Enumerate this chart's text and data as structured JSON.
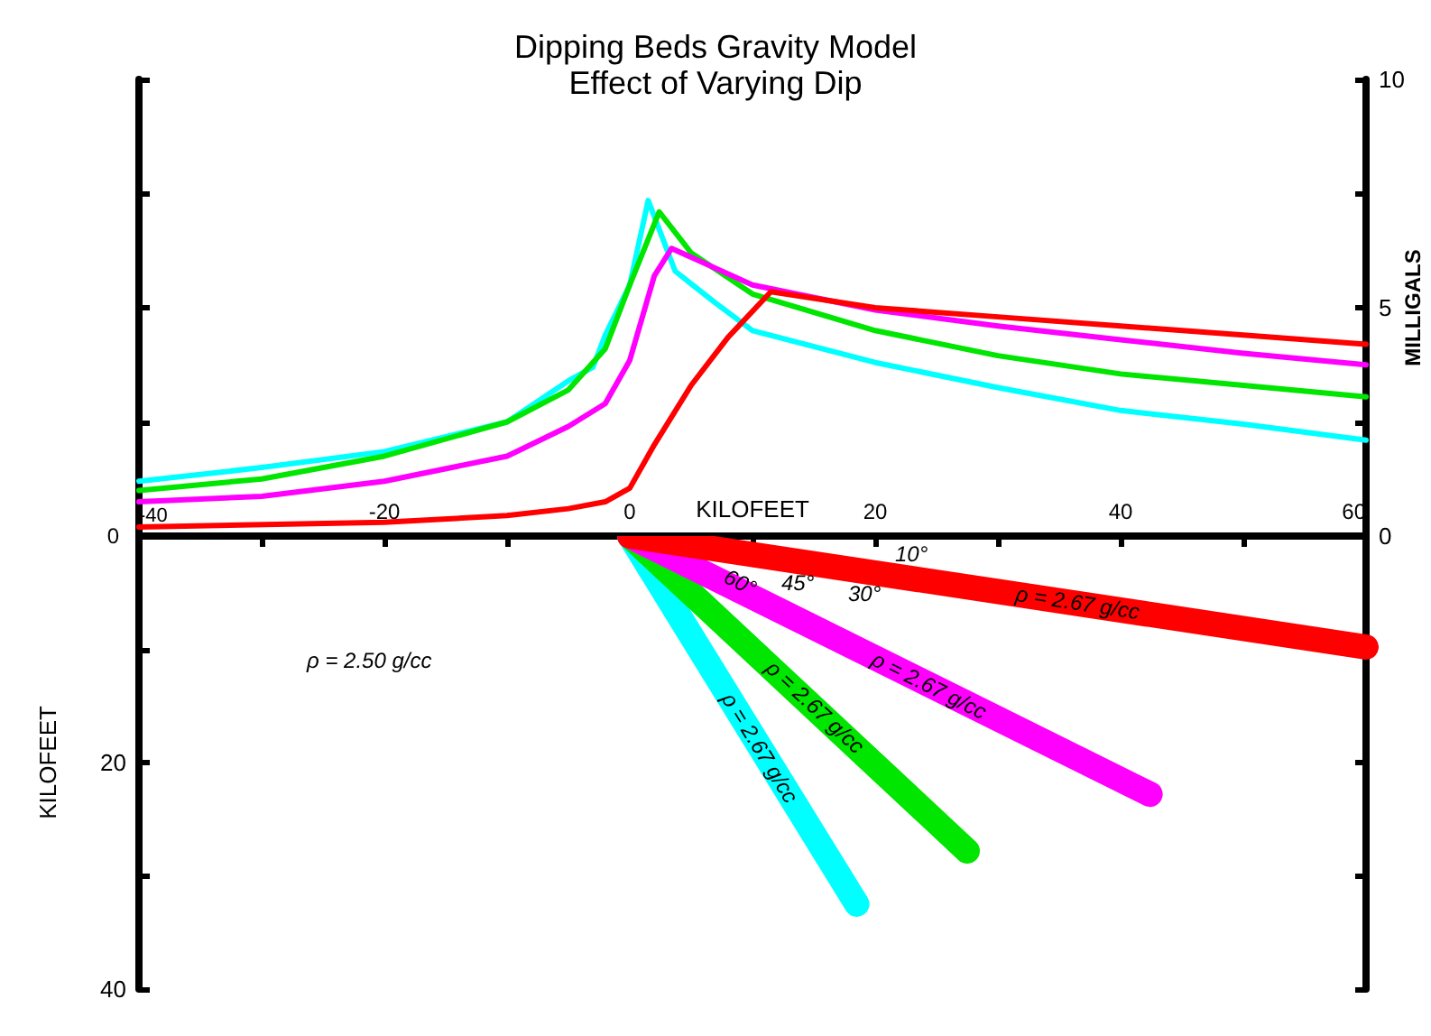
{
  "chart_data": [
    {
      "type": "line",
      "title": "Dipping Beds Gravity Model",
      "subtitle": "Effect of Varying Dip",
      "xlabel": "KILOFEET",
      "y2label": "MILLIGALS",
      "xlim": [
        -40,
        60
      ],
      "xticks": [
        -40,
        {
          "value": -30,
          "label": null
        },
        -20,
        {
          "value": -10,
          "label": null
        },
        0,
        {
          "value": 10,
          "label": null
        },
        20,
        {
          "value": 30,
          "label": null
        },
        40,
        {
          "value": 50,
          "label": null
        },
        60
      ],
      "y2lim": [
        0,
        10
      ],
      "y2ticks": [
        0,
        {
          "value": 2.5,
          "label": null
        },
        5,
        {
          "value": 7.5,
          "label": null
        },
        10
      ],
      "grid": false,
      "marker": "none",
      "line_style": "solid",
      "annotations": [
        "0"
      ],
      "series": [
        {
          "color": "#00ffff",
          "axis": "y2",
          "x": [
            -40,
            -30,
            -20,
            -10,
            -5,
            -3,
            -2,
            0,
            1.5,
            3.7,
            7,
            10,
            20,
            30,
            40,
            50,
            60
          ],
          "values": [
            1.2,
            1.5,
            1.85,
            2.5,
            3.4,
            3.7,
            4.4,
            5.5,
            7.35,
            5.8,
            5.1,
            4.5,
            3.8,
            3.25,
            2.75,
            2.45,
            2.1
          ]
        },
        {
          "color": "#00e600",
          "axis": "y2",
          "x": [
            -40,
            -30,
            -20,
            -10,
            -5,
            -2,
            0,
            2.4,
            5,
            10,
            20,
            30,
            40,
            50,
            60
          ],
          "values": [
            1.0,
            1.25,
            1.75,
            2.5,
            3.2,
            4.1,
            5.5,
            7.1,
            6.2,
            5.3,
            4.5,
            3.95,
            3.55,
            3.3,
            3.05
          ]
        },
        {
          "color": "#ff00ff",
          "axis": "y2",
          "x": [
            -40,
            -30,
            -20,
            -10,
            -5,
            -2,
            0,
            2,
            3.4,
            10,
            20,
            30,
            40,
            50,
            60
          ],
          "values": [
            0.75,
            0.87,
            1.2,
            1.75,
            2.4,
            2.9,
            3.85,
            5.7,
            6.3,
            5.5,
            4.95,
            4.6,
            4.3,
            4.0,
            3.75
          ]
        },
        {
          "color": "#ff0000",
          "axis": "y2",
          "x": [
            -40,
            -20,
            -10,
            -5,
            -2,
            0,
            2,
            5,
            8,
            11.5,
            20,
            30,
            40,
            50,
            60
          ],
          "values": [
            0.2,
            0.3,
            0.45,
            0.6,
            0.75,
            1.05,
            2.0,
            3.3,
            4.35,
            5.35,
            5.0,
            4.8,
            4.6,
            4.4,
            4.2
          ]
        }
      ]
    },
    {
      "type": "line",
      "ylabel": "KILOFEET",
      "tick_labels": "y",
      "xlim": [
        -40,
        60
      ],
      "ylim": [
        40,
        0
      ],
      "yticks": [
        {
          "value": 0,
          "label": null
        },
        {
          "value": 10,
          "label": null
        },
        20,
        {
          "value": 30,
          "label": null
        },
        40
      ],
      "grid": false,
      "marker": "none",
      "line_style": "solid",
      "series": [
        {
          "color": "#00ffff",
          "x": [
            0,
            18.5
          ],
          "values": [
            0,
            32.5
          ]
        },
        {
          "color": "#00e600",
          "x": [
            0,
            27.5
          ],
          "values": [
            0,
            27.8
          ]
        },
        {
          "color": "#ff00ff",
          "x": [
            0,
            42.4
          ],
          "values": [
            0,
            22.8
          ]
        },
        {
          "color": "#ff0000",
          "x": [
            0,
            60
          ],
          "values": [
            0,
            9.8
          ]
        }
      ],
      "annotations": [
        "ρ = 2.50 g/cc",
        {
          "text": "ρ = 2.67 g/cc",
          "x": 36.5,
          "y": 5.9
        },
        {
          "text": "ρ = 2.67 g/cc",
          "x": 24.4,
          "y": 13.2
        },
        {
          "text": "ρ = 2.67 g/cc",
          "x": 15.1,
          "y": 15.1
        },
        {
          "text": "ρ = 2.67 g/cc",
          "x": 10.6,
          "y": 18.7
        },
        "10°",
        "30°",
        "45°",
        {
          "text": "60°",
          "x": 9.0,
          "y": 4.1
        }
      ]
    }
  ]
}
